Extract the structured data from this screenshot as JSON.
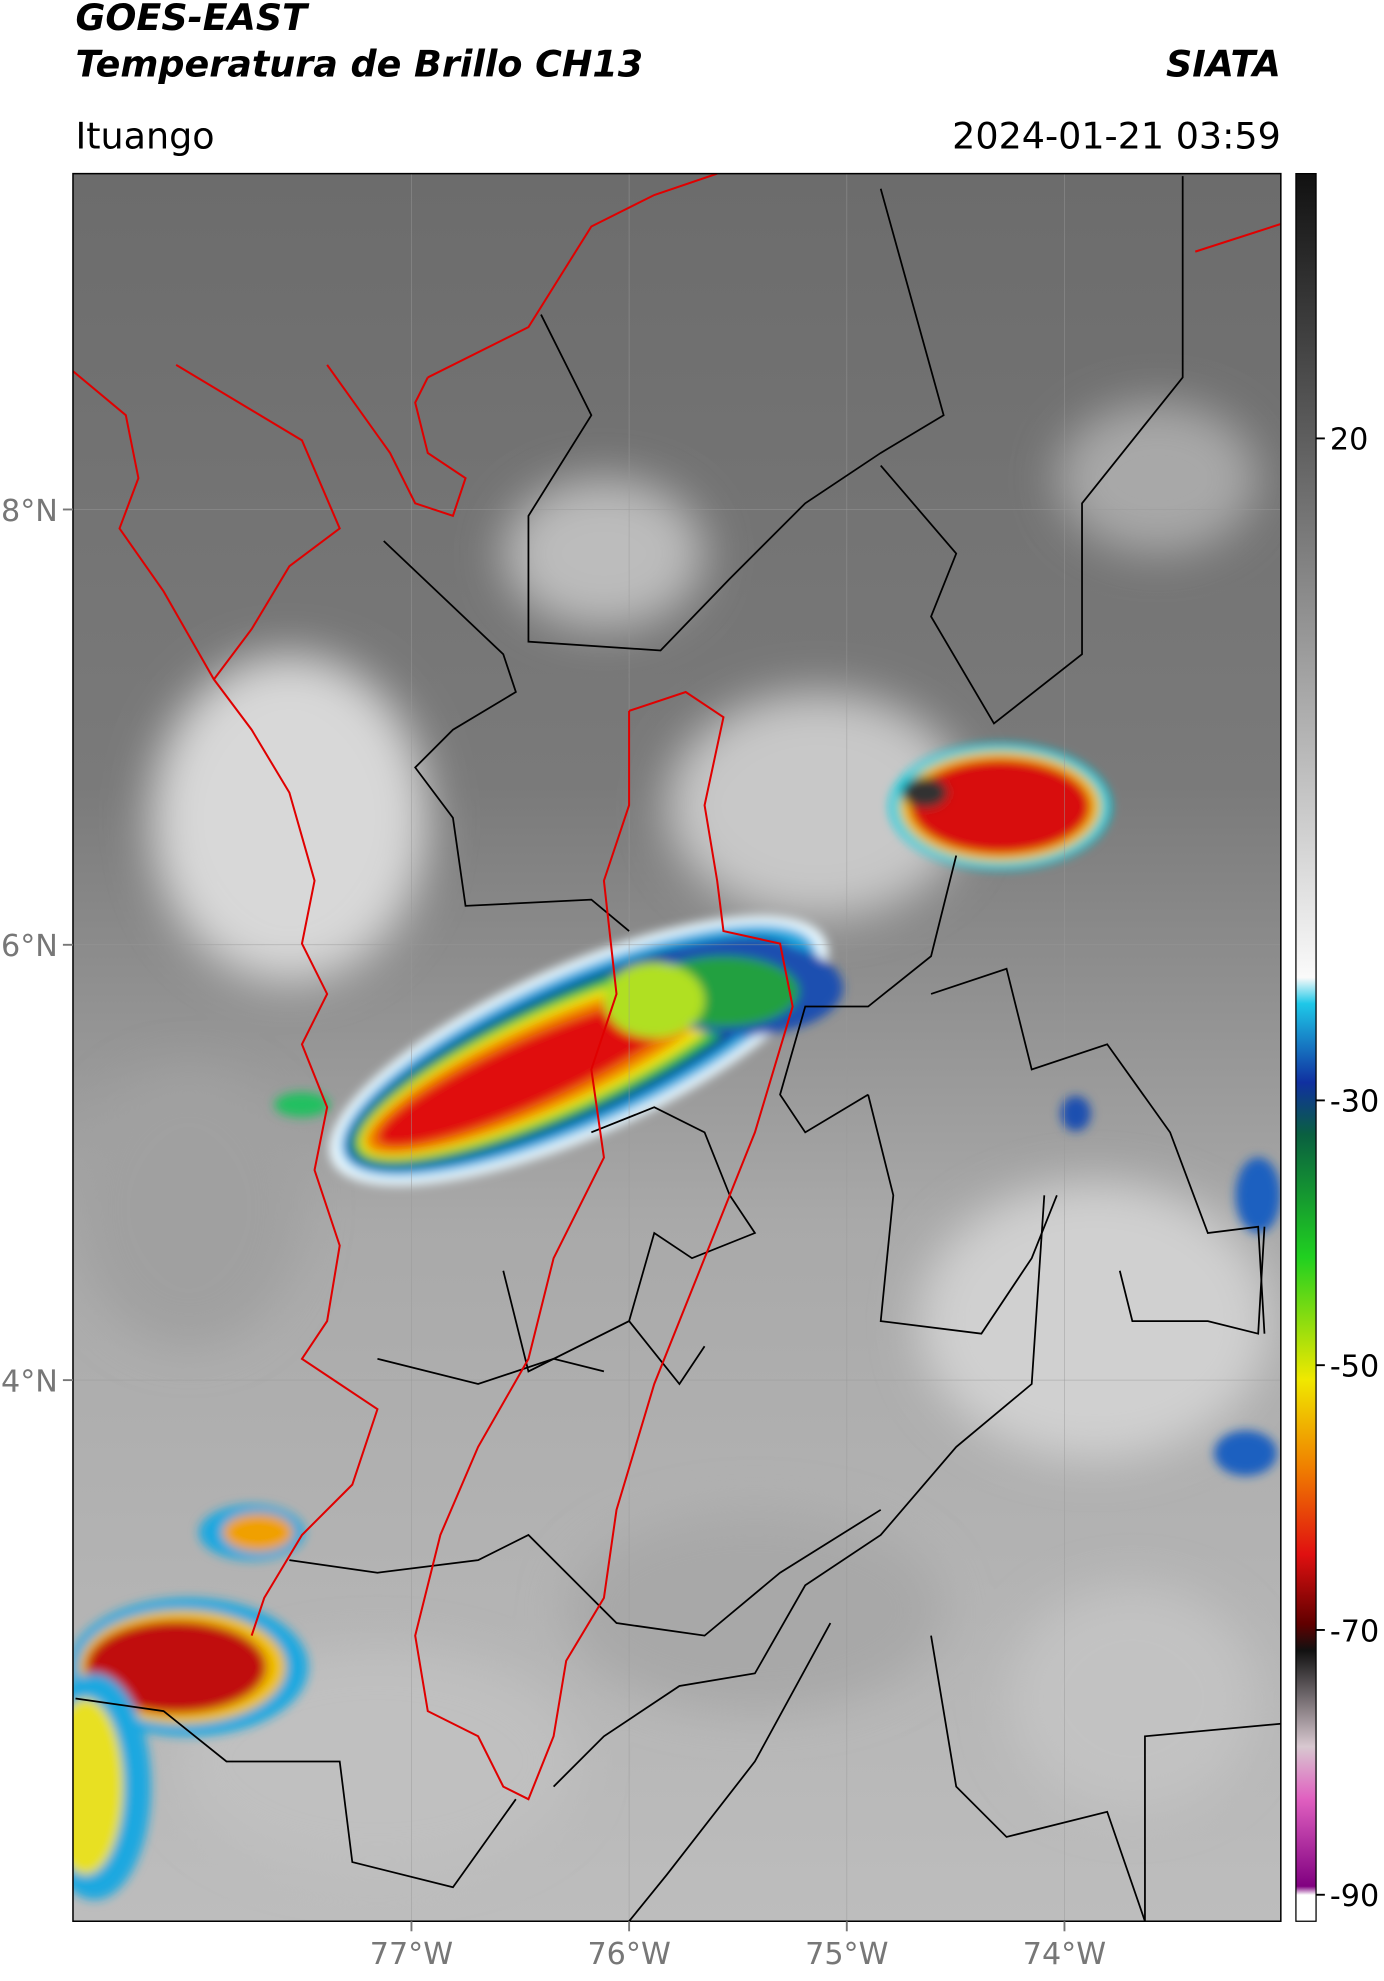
{
  "header": {
    "title": "GOES-EAST",
    "subtitle": "Temperatura de Brillo CH13",
    "brand": "SIATA",
    "location": "Ituango",
    "datetime": "2024-01-21 03:59"
  },
  "map": {
    "xlim": [
      -78.555,
      -73.006
    ],
    "ylim": [
      1.514,
      9.543
    ],
    "xticks": [
      {
        "value": -77,
        "label": "77°W"
      },
      {
        "value": -76,
        "label": "76°W"
      },
      {
        "value": -75,
        "label": "75°W"
      },
      {
        "value": -74,
        "label": "74°W"
      }
    ],
    "yticks": [
      {
        "value": 8,
        "label": "8°N"
      },
      {
        "value": 6,
        "label": "6°N"
      },
      {
        "value": 4,
        "label": "4°N"
      }
    ],
    "grid": true
  },
  "colorbar": {
    "lim": [
      -92,
      40
    ],
    "ticks": [
      20,
      -30,
      -50,
      -70,
      -90
    ]
  }
}
